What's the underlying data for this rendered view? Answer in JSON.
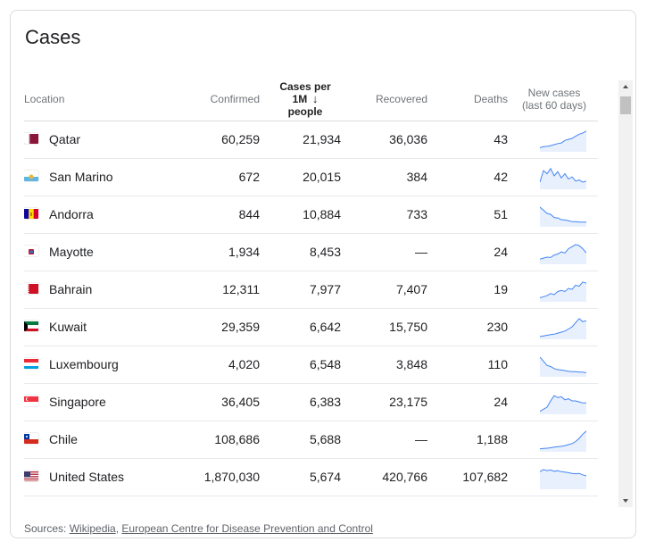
{
  "card": {
    "title": "Cases"
  },
  "headers": {
    "location": "Location",
    "confirmed": "Confirmed",
    "cases_per_1m_line1": "Cases per",
    "cases_per_1m_line2": "1M",
    "cases_per_1m_line3": "people",
    "recovered": "Recovered",
    "deaths": "Deaths",
    "new_cases_line1": "New cases",
    "new_cases_line2": "(last 60 days)",
    "sort_icon": "arrow-down-icon"
  },
  "rows": [
    {
      "location": "Qatar",
      "confirmed": "60,259",
      "per_million": "21,934",
      "recovered": "36,036",
      "deaths": "43",
      "flag": "qatar-flag-icon",
      "trend": [
        0.15,
        0.2,
        0.22,
        0.25,
        0.3,
        0.35,
        0.38,
        0.5,
        0.55,
        0.6,
        0.7,
        0.8,
        0.85,
        0.95
      ]
    },
    {
      "location": "San Marino",
      "confirmed": "672",
      "per_million": "20,015",
      "recovered": "384",
      "deaths": "42",
      "flag": "san-marino-flag-icon",
      "trend": [
        0.3,
        0.85,
        0.7,
        0.95,
        0.6,
        0.8,
        0.5,
        0.7,
        0.45,
        0.55,
        0.35,
        0.4,
        0.3,
        0.35
      ]
    },
    {
      "location": "Andorra",
      "confirmed": "844",
      "per_million": "10,884",
      "recovered": "733",
      "deaths": "51",
      "flag": "andorra-flag-icon",
      "trend": [
        0.9,
        0.75,
        0.6,
        0.55,
        0.4,
        0.38,
        0.3,
        0.28,
        0.25,
        0.2,
        0.2,
        0.18,
        0.18,
        0.18
      ]
    },
    {
      "location": "Mayotte",
      "confirmed": "1,934",
      "per_million": "8,453",
      "recovered": "—",
      "deaths": "24",
      "flag": "mayotte-flag-icon",
      "trend": [
        0.2,
        0.25,
        0.3,
        0.28,
        0.4,
        0.45,
        0.55,
        0.5,
        0.7,
        0.8,
        0.9,
        0.85,
        0.7,
        0.5
      ]
    },
    {
      "location": "Bahrain",
      "confirmed": "12,311",
      "per_million": "7,977",
      "recovered": "7,407",
      "deaths": "19",
      "flag": "bahrain-flag-icon",
      "trend": [
        0.15,
        0.2,
        0.25,
        0.35,
        0.3,
        0.45,
        0.5,
        0.45,
        0.6,
        0.55,
        0.75,
        0.7,
        0.9,
        0.85
      ]
    },
    {
      "location": "Kuwait",
      "confirmed": "29,359",
      "per_million": "6,642",
      "recovered": "15,750",
      "deaths": "230",
      "flag": "kuwait-flag-icon",
      "trend": [
        0.1,
        0.12,
        0.15,
        0.18,
        0.2,
        0.25,
        0.3,
        0.35,
        0.45,
        0.55,
        0.75,
        0.95,
        0.8,
        0.85
      ]
    },
    {
      "location": "Luxembourg",
      "confirmed": "4,020",
      "per_million": "6,548",
      "recovered": "3,848",
      "deaths": "110",
      "flag": "luxembourg-flag-icon",
      "trend": [
        0.9,
        0.7,
        0.5,
        0.45,
        0.35,
        0.3,
        0.28,
        0.25,
        0.22,
        0.2,
        0.2,
        0.18,
        0.18,
        0.15
      ]
    },
    {
      "location": "Singapore",
      "confirmed": "36,405",
      "per_million": "6,383",
      "recovered": "23,175",
      "deaths": "24",
      "flag": "singapore-flag-icon",
      "trend": [
        0.1,
        0.2,
        0.3,
        0.6,
        0.85,
        0.75,
        0.8,
        0.65,
        0.7,
        0.6,
        0.6,
        0.55,
        0.5,
        0.5
      ]
    },
    {
      "location": "Chile",
      "confirmed": "108,686",
      "per_million": "5,688",
      "recovered": "—",
      "deaths": "1,188",
      "flag": "chile-flag-icon",
      "trend": [
        0.1,
        0.12,
        0.13,
        0.15,
        0.18,
        0.2,
        0.22,
        0.25,
        0.3,
        0.35,
        0.45,
        0.6,
        0.8,
        0.95
      ]
    },
    {
      "location": "United States",
      "confirmed": "1,870,030",
      "per_million": "5,674",
      "recovered": "420,766",
      "deaths": "107,682",
      "flag": "united-states-flag-icon",
      "trend": [
        0.8,
        0.9,
        0.85,
        0.88,
        0.82,
        0.85,
        0.8,
        0.78,
        0.75,
        0.72,
        0.7,
        0.72,
        0.65,
        0.6
      ]
    }
  ],
  "sources": {
    "prefix": "Sources: ",
    "link1": "Wikipedia",
    "separator": ", ",
    "link2": "European Centre for Disease Prevention and Control"
  },
  "colors": {
    "sparkline": "#4285f4",
    "sparkfill": "#e8f0fe"
  }
}
